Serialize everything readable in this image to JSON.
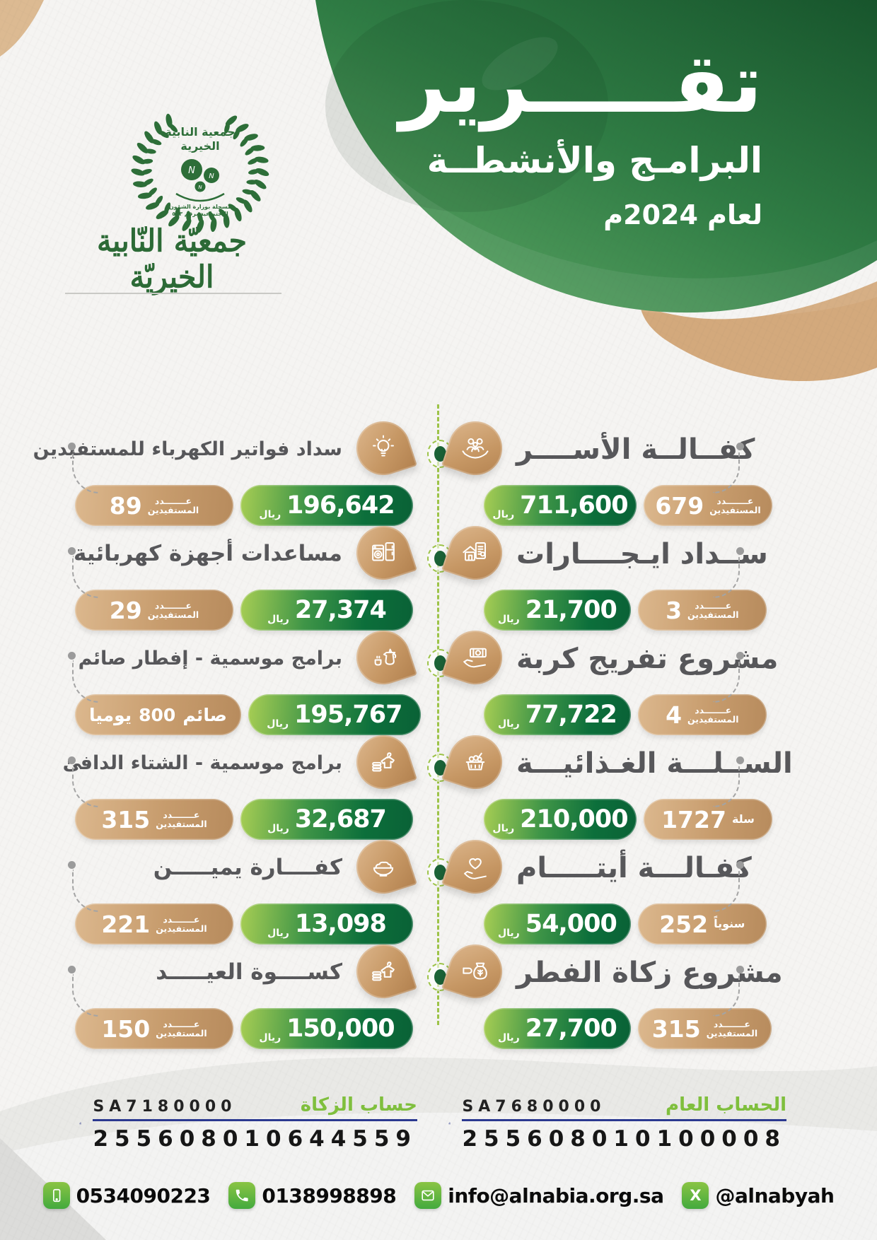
{
  "header": {
    "title_big": "تقـــــرير",
    "title_sub": "البرامـج والأنشطــة",
    "title_year": "لعام 2024م"
  },
  "logo": {
    "org_line1": "جمعية النابية",
    "org_line2": "الخيرية",
    "monogram": "N",
    "registration_line1": "مسجلة بوزارة الشؤون",
    "registration_line2": "الاجتماعية برقم ٥٠٣",
    "calligraphy": "جمعيّة النّابية الخيريّة"
  },
  "programs_right": [
    {
      "title": "كفــالــة الأســــر",
      "amount": "711,600",
      "currency": "ريال",
      "count_value": "679",
      "count_label_top": "عـــــــدد",
      "count_label_bottom": "المستفيدين",
      "icon": "family-care"
    },
    {
      "title": "ســداد ايـجــــارات",
      "amount": "21,700",
      "currency": "ريال",
      "count_value": "3",
      "count_label_top": "عـــــــدد",
      "count_label_bottom": "المستفيدين",
      "icon": "rent-house"
    },
    {
      "title": "مشروع تفريج كربة",
      "amount": "77,722",
      "currency": "ريال",
      "count_value": "4",
      "count_label_top": "عـــــــدد",
      "count_label_bottom": "المستفيدين",
      "icon": "money-hand"
    },
    {
      "title": "الســلـــة الغـذائيـــة",
      "amount": "210,000",
      "currency": "ريال",
      "count_value": "1727",
      "count_label_top": "",
      "count_label_bottom": "سلة",
      "icon": "food-basket"
    },
    {
      "title": "كفـالـــة أيتـــــام",
      "amount": "54,000",
      "currency": "ريال",
      "count_value": "252",
      "count_label_top": "",
      "count_label_bottom": "سنوياً",
      "icon": "heart-hand"
    },
    {
      "title": "مشروع زكاة الفطر",
      "amount": "27,700",
      "currency": "ريال",
      "count_value": "315",
      "count_label_top": "عـــــــدد",
      "count_label_bottom": "المستفيدين",
      "icon": "zakat-money-bag"
    }
  ],
  "programs_left": [
    {
      "title": "سداد فواتير الكهرباء للمستفيدين",
      "amount": "196,642",
      "currency": "ريال",
      "count_value": "89",
      "count_label_top": "عـــــــدد",
      "count_label_bottom": "المستفيدين",
      "icon": "lightbulb"
    },
    {
      "title": "مساعدات أجهزة كهربائية",
      "amount": "27,374",
      "currency": "ريال",
      "count_value": "29",
      "count_label_top": "عـــــــدد",
      "count_label_bottom": "المستفيدين",
      "icon": "appliances"
    },
    {
      "title": "برامج موسمية - إفطار صائم",
      "amount": "195,767",
      "currency": "ريال",
      "count_prefix": "يوميا",
      "count_value": "800",
      "count_label_top": "",
      "count_label_bottom": "صائم",
      "icon": "coffee-pot"
    },
    {
      "title": "برامج موسمية - الشتاء الدافئ",
      "amount": "32,687",
      "currency": "ريال",
      "count_value": "315",
      "count_label_top": "عـــــــدد",
      "count_label_bottom": "المستفيدين",
      "icon": "winter-clothes"
    },
    {
      "title": "كفــــارة يميـــــن",
      "amount": "13,098",
      "currency": "ريال",
      "count_value": "221",
      "count_label_top": "عـــــــدد",
      "count_label_bottom": "المستفيدين",
      "icon": "rice-bowl"
    },
    {
      "title": "كســــوة العيـــــد",
      "amount": "150,000",
      "currency": "ريال",
      "count_value": "150",
      "count_label_top": "عـــــــدد",
      "count_label_bottom": "المستفيدين",
      "icon": "eid-clothes"
    }
  ],
  "accounts": {
    "zakat": {
      "label": "حساب الزكاة",
      "iban_prefix": "SA7180000",
      "number": "255608010644559"
    },
    "general": {
      "label": "الحساب العام",
      "iban_prefix": "SA7680000",
      "number": "255608010100008"
    }
  },
  "contacts": {
    "mobile": "0534090223",
    "phone": "0138998898",
    "email": "info@alnabia.org.sa",
    "x_handle": "@alnabyah"
  },
  "colors": {
    "brand_green_dark": "#17552c",
    "brand_green": "#3f8c4f",
    "pill_green_dark": "#0c6f3b",
    "pill_green_light": "#a8ce54",
    "tan": "#c79c6d",
    "accent_lime": "#8cc63f",
    "rajhi_blue": "#2b3990",
    "contact_green": "#4fae44",
    "title_gray": "#57575a"
  }
}
